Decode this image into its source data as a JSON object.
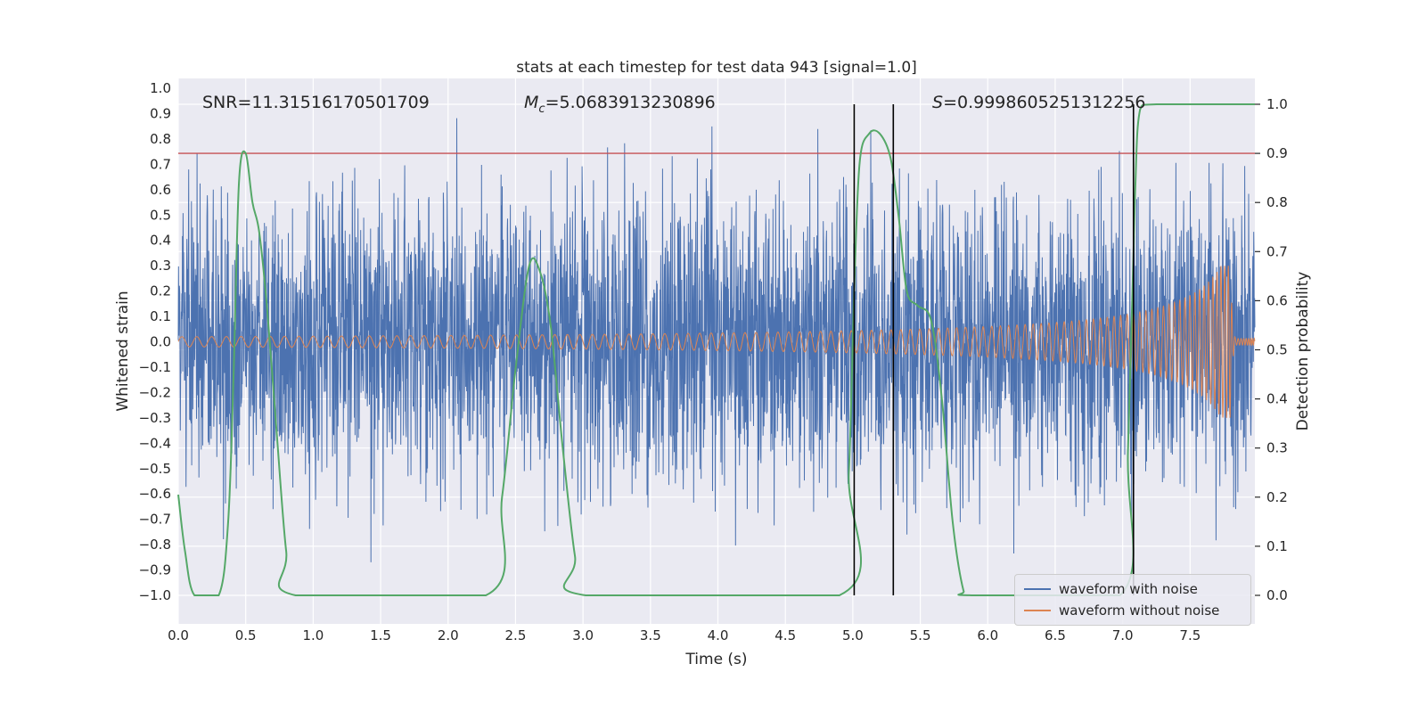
{
  "figure": {
    "title": "stats at each timestep for test data 943 [signal=1.0]",
    "xlabel": "Time (s)",
    "ylabel_left": "Whitened strain",
    "ylabel_right": "Detection probability"
  },
  "annotations": {
    "snr": "SNR=11.31516170501709",
    "mc_symbol": "M",
    "mc_sub": "c",
    "mc_value": "=5.0683913230896",
    "s_symbol": "S",
    "s_value": "=0.9998605251312256"
  },
  "chart_data": {
    "type": "line",
    "title": "stats at each timestep for test data 943 [signal=1.0]",
    "xlabel": "Time (s)",
    "ylabel_left": "Whitened strain",
    "ylabel_right": "Detection probability",
    "plot_bg": "#eaeaf2",
    "grid_color": "#ffffff",
    "text_color": "#262626",
    "x_max": 7.98,
    "ylim_left": [
      -1.1,
      1.04
    ],
    "ylim_right": [
      0.0,
      1.0
    ],
    "legend_loc": "lower right",
    "x_ticks": [
      "0.0",
      "0.5",
      "1.0",
      "1.5",
      "2.0",
      "2.5",
      "3.0",
      "3.5",
      "4.0",
      "4.5",
      "5.0",
      "5.5",
      "6.0",
      "6.5",
      "7.0",
      "7.5"
    ],
    "y_ticks_left": [
      "1.0",
      "0.9",
      "0.8",
      "0.7",
      "0.6",
      "0.5",
      "0.4",
      "0.3",
      "0.2",
      "0.1",
      "0.0",
      "−0.1",
      "−0.2",
      "−0.3",
      "−0.4",
      "−0.5",
      "−0.6",
      "−0.7",
      "−0.8",
      "−0.9",
      "−1.0"
    ],
    "y_ticks_right": [
      "1.0",
      "0.9",
      "0.8",
      "0.7",
      "0.6",
      "0.5",
      "0.4",
      "0.3",
      "0.2",
      "0.1",
      "0.0"
    ],
    "series_noise": {
      "name": "waveform with noise",
      "color": "#4c72b0",
      "axis": "left",
      "kind": "stochastic",
      "description": "whitened strain noise oscillating about 0, dense band ±0.5, spikes to ±0.95, spans t=0..7.98 s",
      "seed": 9,
      "n": 3600,
      "scale": 0.5
    },
    "series_signal": {
      "name": "waveform without noise",
      "color": "#dd8452",
      "axis": "left",
      "kind": "chirp",
      "description": "gravitational-wave chirp: amplitude grows ~0.02 to ~0.30 and frequency rises until merger at t≈7.80 s, then rapid ringdown to a thin tail",
      "t_end": 7.98,
      "t_merge": 7.8,
      "t_ref": 8.0,
      "amp0": 0.02,
      "amp_pow": 0.8,
      "amp_max": 0.3,
      "f0": 9,
      "f_pow": 0.4,
      "ring_tau": 0.012,
      "tail_amp": 0.013
    },
    "series_probability": {
      "name": "detection probability",
      "color": "#55a868",
      "axis": "right",
      "kind": "line",
      "points": [
        [
          0.0,
          0.205
        ],
        [
          0.05,
          0.09
        ],
        [
          0.12,
          0.0
        ],
        [
          0.3,
          0.0
        ],
        [
          0.37,
          0.15
        ],
        [
          0.41,
          0.45
        ],
        [
          0.45,
          0.84
        ],
        [
          0.5,
          0.9
        ],
        [
          0.55,
          0.8
        ],
        [
          0.6,
          0.74
        ],
        [
          0.66,
          0.58
        ],
        [
          0.73,
          0.33
        ],
        [
          0.8,
          0.09
        ],
        [
          0.87,
          0.0
        ],
        [
          2.28,
          0.0
        ],
        [
          2.4,
          0.2
        ],
        [
          2.5,
          0.46
        ],
        [
          2.6,
          0.67
        ],
        [
          2.68,
          0.66
        ],
        [
          2.76,
          0.55
        ],
        [
          2.85,
          0.3
        ],
        [
          2.94,
          0.08
        ],
        [
          3.02,
          0.0
        ],
        [
          4.9,
          0.0
        ],
        [
          4.97,
          0.25
        ],
        [
          5.01,
          0.62
        ],
        [
          5.05,
          0.88
        ],
        [
          5.12,
          0.94
        ],
        [
          5.2,
          0.94
        ],
        [
          5.28,
          0.89
        ],
        [
          5.34,
          0.77
        ],
        [
          5.4,
          0.62
        ],
        [
          5.48,
          0.59
        ],
        [
          5.58,
          0.56
        ],
        [
          5.66,
          0.4
        ],
        [
          5.74,
          0.15
        ],
        [
          5.82,
          0.01
        ],
        [
          5.88,
          0.0
        ],
        [
          6.98,
          0.0
        ],
        [
          7.04,
          0.3
        ],
        [
          7.09,
          0.8
        ],
        [
          7.13,
          0.99
        ],
        [
          7.25,
          1.0
        ],
        [
          7.98,
          1.0
        ]
      ]
    },
    "threshold": {
      "value": 0.9,
      "axis": "right",
      "color": "#c44e52"
    },
    "vlines": {
      "x": [
        5.01,
        5.3,
        7.08
      ],
      "color": "#000000",
      "span_right_axis": [
        0.0,
        1.0
      ]
    }
  }
}
